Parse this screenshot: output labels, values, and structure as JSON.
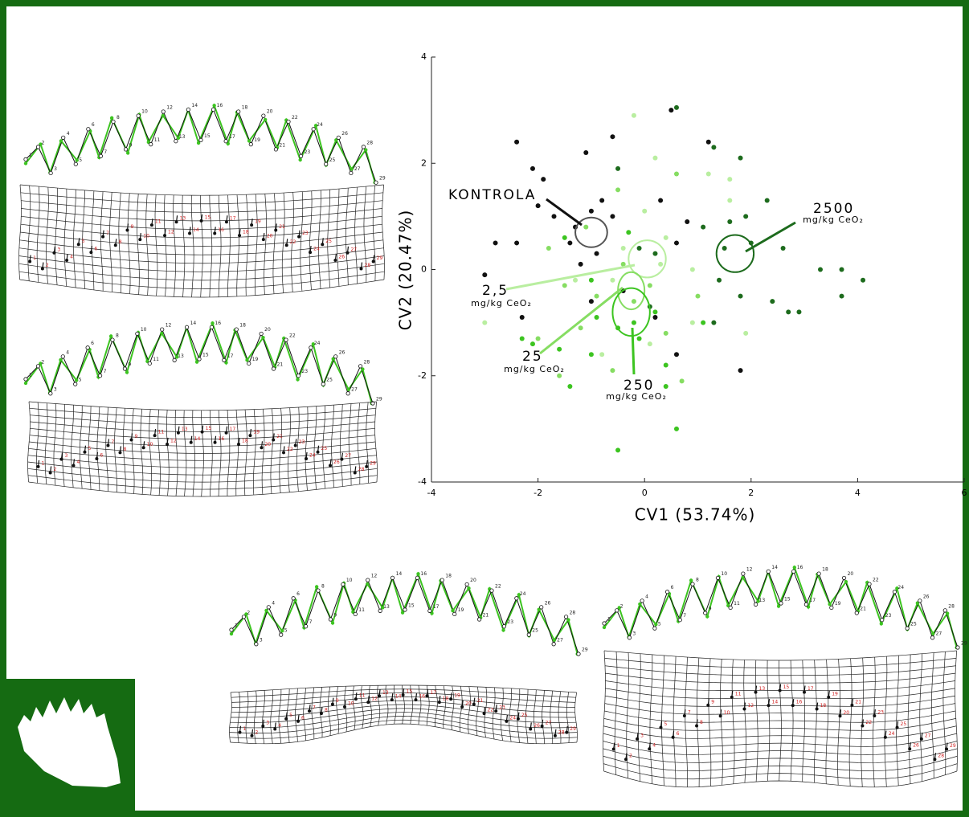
{
  "chart_data": {
    "type": "scatter",
    "xlabel": "CV1 (53.74%)",
    "ylabel": "CV2 (20.47%)",
    "xlim": [
      -4,
      6
    ],
    "ylim": [
      -4,
      4
    ],
    "xticks": [
      -4,
      -2,
      0,
      2,
      4,
      6
    ],
    "yticks": [
      -4,
      -2,
      0,
      2,
      4
    ],
    "series": [
      {
        "name": "KONTROLA",
        "color": "#111111",
        "x": [
          -2.4,
          -2.1,
          -1.9,
          -1.1,
          -0.6,
          1.2,
          -2.0,
          -1.7,
          -1.3,
          -1.0,
          -0.8,
          -0.6,
          -1.4,
          -2.4,
          -2.8,
          -3.0,
          -1.2,
          -0.9,
          0.6,
          0.3,
          0.8,
          -0.4,
          -1.0,
          -2.3,
          0.6,
          1.8,
          0.5,
          0.2
        ],
        "values": [
          2.4,
          1.9,
          1.7,
          2.2,
          2.5,
          2.4,
          1.2,
          1.0,
          0.8,
          1.1,
          1.3,
          1.0,
          0.5,
          0.5,
          0.5,
          -0.1,
          0.1,
          0.3,
          0.5,
          1.3,
          0.9,
          -0.4,
          -0.6,
          -0.9,
          -1.6,
          -1.9,
          3.0,
          -0.9
        ],
        "ellipse": [
          -1.0,
          0.7,
          0.3,
          0.28
        ]
      },
      {
        "name": "2,5",
        "unit": "mg/kg CeO₂",
        "color": "#b9eea0",
        "x": [
          -0.2,
          0.2,
          1.2,
          1.6,
          0.0,
          0.4,
          -0.4,
          0.9,
          -0.6,
          -3.0,
          -0.8,
          0.9,
          1.9,
          2.4,
          1.6,
          0.3,
          -1.3,
          0.1
        ],
        "values": [
          2.9,
          2.1,
          1.8,
          1.3,
          1.1,
          0.6,
          0.4,
          0.0,
          -0.2,
          -1.0,
          -1.6,
          -1.0,
          -1.2,
          -0.6,
          1.7,
          0.1,
          -0.2,
          -1.4
        ],
        "ellipse": [
          0.05,
          0.2,
          0.35,
          0.35
        ]
      },
      {
        "name": "25",
        "unit": "mg/kg CeO₂",
        "color": "#86dd62",
        "x": [
          -1.8,
          -1.5,
          -0.9,
          -0.4,
          -0.2,
          0.1,
          -1.2,
          -2.0,
          -1.6,
          -0.6,
          0.4,
          1.0,
          -0.5,
          0.6,
          -1.1,
          0.7
        ],
        "values": [
          0.4,
          -0.3,
          -0.5,
          0.1,
          -0.6,
          -0.3,
          -1.1,
          -1.3,
          -2.0,
          -1.9,
          -1.2,
          -0.5,
          1.5,
          1.8,
          0.8,
          -2.1
        ],
        "ellipse": [
          -0.25,
          -0.4,
          0.25,
          0.35
        ]
      },
      {
        "name": "250",
        "unit": "mg/kg CeO₂",
        "color": "#3cc420",
        "x": [
          -2.3,
          -1.6,
          -1.4,
          -1.0,
          -0.5,
          -0.2,
          -0.1,
          0.2,
          0.4,
          0.6,
          -0.5,
          -0.9,
          -1.5,
          -0.3,
          0.4,
          -1.0,
          1.1,
          -2.1
        ],
        "values": [
          -1.3,
          -1.5,
          -2.2,
          -1.6,
          -1.1,
          -1.0,
          -1.3,
          -0.8,
          -1.8,
          -3.0,
          -3.4,
          -0.9,
          0.6,
          0.7,
          -2.2,
          -0.2,
          -1.0,
          -1.4
        ],
        "ellipse": [
          -0.25,
          -0.8,
          0.35,
          0.45
        ]
      },
      {
        "name": "2500",
        "unit": "mg/kg CeO₂",
        "color": "#1d6b1d",
        "x": [
          1.3,
          1.8,
          2.3,
          1.6,
          1.9,
          2.0,
          2.6,
          1.5,
          1.4,
          1.8,
          2.4,
          2.7,
          2.9,
          3.3,
          3.7,
          4.1,
          3.7,
          1.3,
          1.1,
          0.2,
          0.1,
          -0.1,
          0.6,
          -0.5
        ],
        "values": [
          2.3,
          2.1,
          1.3,
          0.9,
          1.0,
          0.5,
          0.4,
          0.4,
          -0.2,
          -0.5,
          -0.6,
          -0.8,
          -0.8,
          0.0,
          0.0,
          -0.2,
          -0.5,
          -1.0,
          0.8,
          0.3,
          -0.7,
          0.4,
          3.05,
          1.9
        ],
        "ellipse": [
          1.7,
          0.3,
          0.35,
          0.35
        ]
      }
    ]
  },
  "landmark_labels": [
    "1",
    "2",
    "3",
    "4",
    "5",
    "6",
    "7",
    "8",
    "9",
    "10",
    "11",
    "12",
    "13",
    "14",
    "15",
    "16",
    "17",
    "18",
    "19",
    "20",
    "21",
    "22",
    "23",
    "24",
    "25",
    "26",
    "27",
    "28",
    "29"
  ]
}
